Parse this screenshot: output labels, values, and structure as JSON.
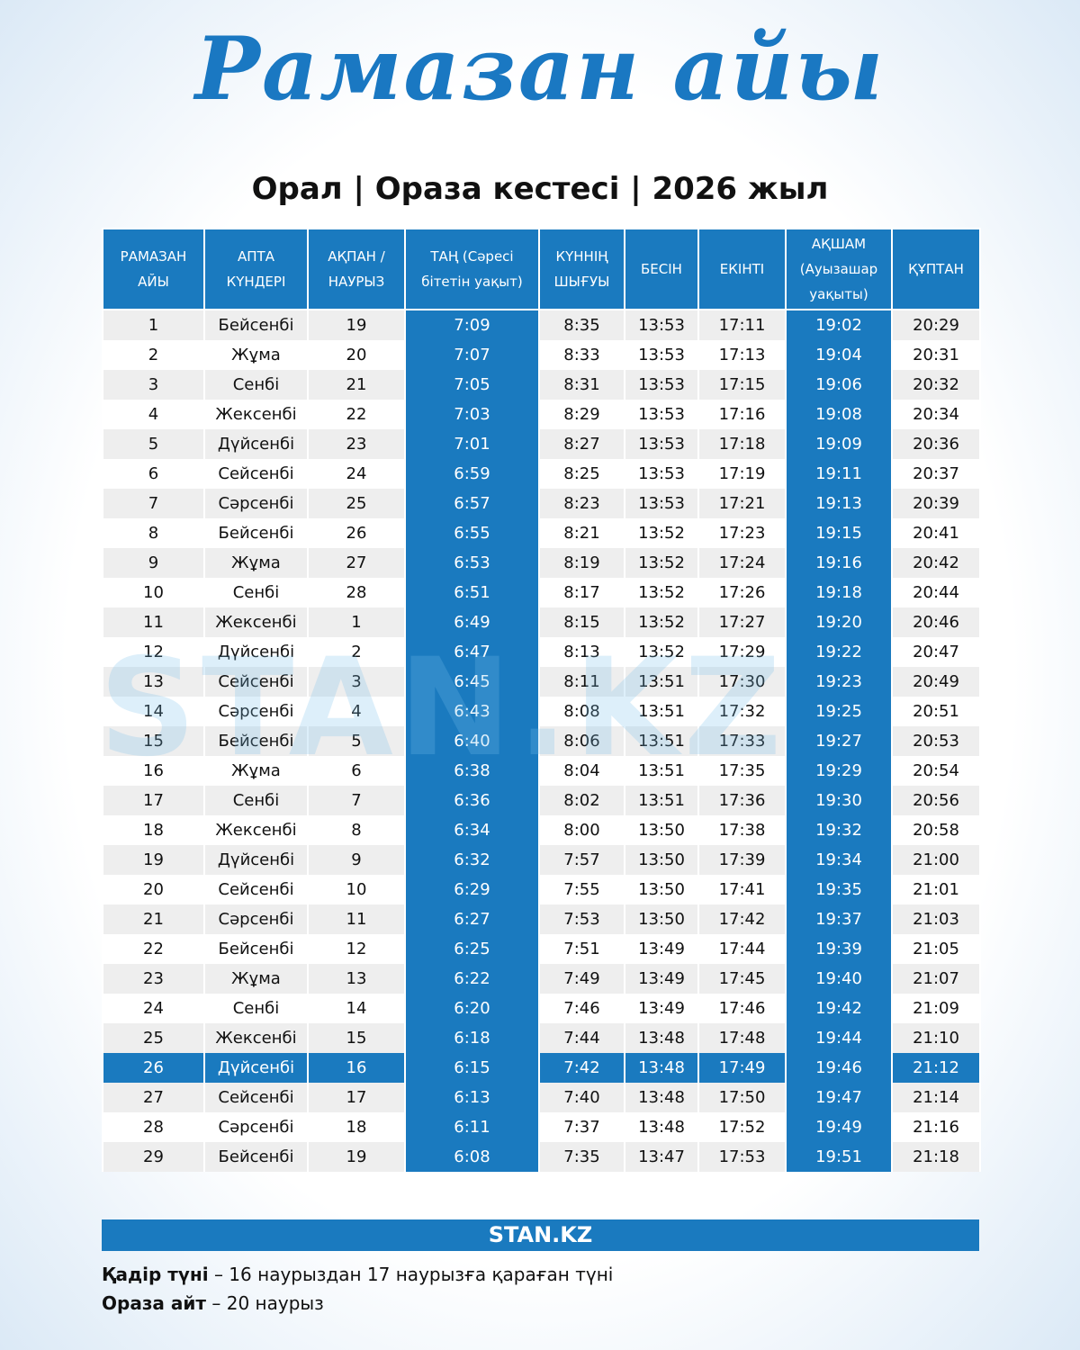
{
  "header": {
    "title": "Рамазан айы",
    "subtitle": "Орал | Ораза кестесі | 2026 жыл"
  },
  "table": {
    "columns": [
      "РАМАЗАН АЙЫ",
      "АПТА КҮНДЕРІ",
      "АҚПАН / НАУРЫЗ",
      "ТАҢ (Сәресі бітетін уақыт)",
      "КҮННІҢ ШЫҒУЫ",
      "БЕСІН",
      "ЕКІНТІ",
      "АҚШАМ (Ауызашар уақыты)",
      "ҚҰПТАН"
    ],
    "rows": [
      [
        "1",
        "Бейсенбі",
        "19",
        "7:09",
        "8:35",
        "13:53",
        "17:11",
        "19:02",
        "20:29"
      ],
      [
        "2",
        "Жұма",
        "20",
        "7:07",
        "8:33",
        "13:53",
        "17:13",
        "19:04",
        "20:31"
      ],
      [
        "3",
        "Сенбі",
        "21",
        "7:05",
        "8:31",
        "13:53",
        "17:15",
        "19:06",
        "20:32"
      ],
      [
        "4",
        "Жексенбі",
        "22",
        "7:03",
        "8:29",
        "13:53",
        "17:16",
        "19:08",
        "20:34"
      ],
      [
        "5",
        "Дүйсенбі",
        "23",
        "7:01",
        "8:27",
        "13:53",
        "17:18",
        "19:09",
        "20:36"
      ],
      [
        "6",
        "Сейсенбі",
        "24",
        "6:59",
        "8:25",
        "13:53",
        "17:19",
        "19:11",
        "20:37"
      ],
      [
        "7",
        "Сәрсенбі",
        "25",
        "6:57",
        "8:23",
        "13:53",
        "17:21",
        "19:13",
        "20:39"
      ],
      [
        "8",
        "Бейсенбі",
        "26",
        "6:55",
        "8:21",
        "13:52",
        "17:23",
        "19:15",
        "20:41"
      ],
      [
        "9",
        "Жұма",
        "27",
        "6:53",
        "8:19",
        "13:52",
        "17:24",
        "19:16",
        "20:42"
      ],
      [
        "10",
        "Сенбі",
        "28",
        "6:51",
        "8:17",
        "13:52",
        "17:26",
        "19:18",
        "20:44"
      ],
      [
        "11",
        "Жексенбі",
        "1",
        "6:49",
        "8:15",
        "13:52",
        "17:27",
        "19:20",
        "20:46"
      ],
      [
        "12",
        "Дүйсенбі",
        "2",
        "6:47",
        "8:13",
        "13:52",
        "17:29",
        "19:22",
        "20:47"
      ],
      [
        "13",
        "Сейсенбі",
        "3",
        "6:45",
        "8:11",
        "13:51",
        "17:30",
        "19:23",
        "20:49"
      ],
      [
        "14",
        "Сәрсенбі",
        "4",
        "6:43",
        "8:08",
        "13:51",
        "17:32",
        "19:25",
        "20:51"
      ],
      [
        "15",
        "Бейсенбі",
        "5",
        "6:40",
        "8:06",
        "13:51",
        "17:33",
        "19:27",
        "20:53"
      ],
      [
        "16",
        "Жұма",
        "6",
        "6:38",
        "8:04",
        "13:51",
        "17:35",
        "19:29",
        "20:54"
      ],
      [
        "17",
        "Сенбі",
        "7",
        "6:36",
        "8:02",
        "13:51",
        "17:36",
        "19:30",
        "20:56"
      ],
      [
        "18",
        "Жексенбі",
        "8",
        "6:34",
        "8:00",
        "13:50",
        "17:38",
        "19:32",
        "20:58"
      ],
      [
        "19",
        "Дүйсенбі",
        "9",
        "6:32",
        "7:57",
        "13:50",
        "17:39",
        "19:34",
        "21:00"
      ],
      [
        "20",
        "Сейсенбі",
        "10",
        "6:29",
        "7:55",
        "13:50",
        "17:41",
        "19:35",
        "21:01"
      ],
      [
        "21",
        "Сәрсенбі",
        "11",
        "6:27",
        "7:53",
        "13:50",
        "17:42",
        "19:37",
        "21:03"
      ],
      [
        "22",
        "Бейсенбі",
        "12",
        "6:25",
        "7:51",
        "13:49",
        "17:44",
        "19:39",
        "21:05"
      ],
      [
        "23",
        "Жұма",
        "13",
        "6:22",
        "7:49",
        "13:49",
        "17:45",
        "19:40",
        "21:07"
      ],
      [
        "24",
        "Сенбі",
        "14",
        "6:20",
        "7:46",
        "13:49",
        "17:46",
        "19:42",
        "21:09"
      ],
      [
        "25",
        "Жексенбі",
        "15",
        "6:18",
        "7:44",
        "13:48",
        "17:48",
        "19:44",
        "21:10"
      ],
      [
        "26",
        "Дүйсенбі",
        "16",
        "6:15",
        "7:42",
        "13:48",
        "17:49",
        "19:46",
        "21:12"
      ],
      [
        "27",
        "Сейсенбі",
        "17",
        "6:13",
        "7:40",
        "13:48",
        "17:50",
        "19:47",
        "21:14"
      ],
      [
        "28",
        "Сәрсенбі",
        "18",
        "6:11",
        "7:37",
        "13:48",
        "17:52",
        "19:49",
        "21:16"
      ],
      [
        "29",
        "Бейсенбі",
        "19",
        "6:08",
        "7:35",
        "13:47",
        "17:53",
        "19:51",
        "21:18"
      ]
    ],
    "footer": "STAN.KZ"
  },
  "notes": [
    {
      "label": "Қадір түні",
      "text": "– 16 наурыздан 17 наурызға қараған түні"
    },
    {
      "label": "Ораза айт",
      "text": "– 20 наурыз"
    }
  ]
}
